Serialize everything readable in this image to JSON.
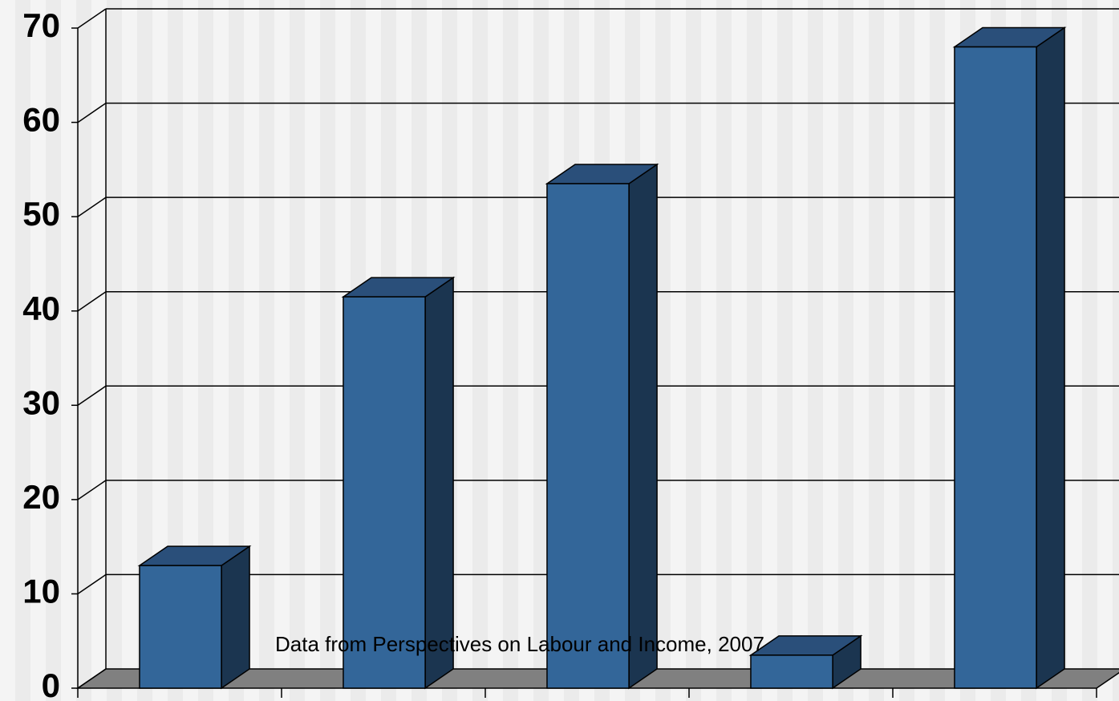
{
  "chart_data": {
    "type": "bar3d",
    "annotation": "Data from Perspectives on Labour and Income, 2007",
    "categories": [
      null,
      null,
      null,
      null,
      null
    ],
    "values": [
      13,
      41.5,
      53.5,
      3.5,
      68
    ],
    "color": "#336699",
    "ylim": [
      0,
      70
    ],
    "yticks": [
      0,
      10,
      20,
      30,
      40,
      50,
      60,
      70
    ],
    "grid": true
  }
}
